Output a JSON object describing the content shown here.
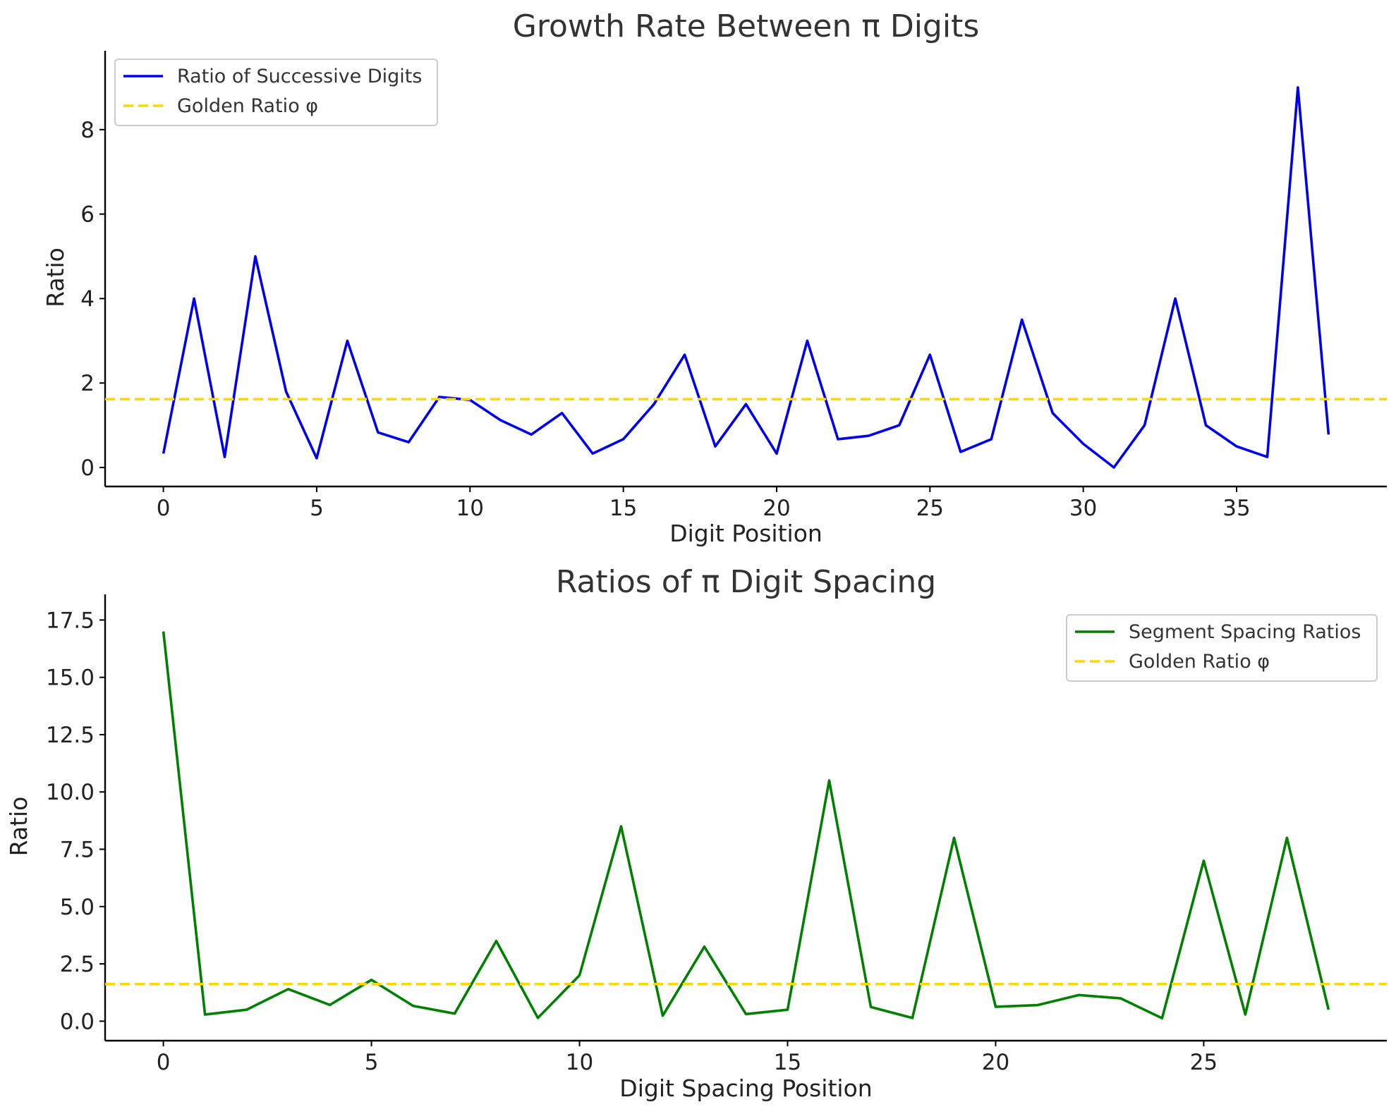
{
  "chart_data": [
    {
      "type": "line",
      "title": "Growth Rate Between π Digits",
      "xlabel": "Digit Position",
      "ylabel": "Ratio",
      "xlim": [
        -1.9,
        39.9
      ],
      "ylim": [
        -0.45,
        9.45
      ],
      "xticks": [
        0,
        5,
        10,
        15,
        20,
        25,
        30,
        35
      ],
      "xtick_labels": [
        "0",
        "5",
        "10",
        "15",
        "20",
        "25",
        "30",
        "35"
      ],
      "yticks": [
        0,
        2,
        4,
        6,
        8
      ],
      "ytick_labels": [
        "0",
        "2",
        "4",
        "6",
        "8"
      ],
      "grid": false,
      "legend_position": "top-left",
      "series": [
        {
          "name": "Ratio of Successive Digits",
          "color": "#0000ee",
          "style": "solid",
          "x": [
            0,
            1,
            2,
            3,
            4,
            5,
            6,
            7,
            8,
            9,
            10,
            11,
            12,
            13,
            14,
            15,
            16,
            17,
            18,
            19,
            20,
            21,
            22,
            23,
            24,
            25,
            26,
            27,
            28,
            29,
            30,
            31,
            32,
            33,
            34,
            35,
            36,
            37,
            38
          ],
          "values": [
            0.33,
            4,
            0.25,
            5,
            1.8,
            0.22,
            3,
            0.83,
            0.6,
            1.67,
            1.6,
            1.12,
            0.78,
            1.29,
            0.33,
            0.67,
            1.5,
            2.67,
            0.5,
            1.5,
            0.33,
            3,
            0.67,
            0.75,
            1,
            2.67,
            0.37,
            0.67,
            3.5,
            1.29,
            0.56,
            0,
            1,
            4,
            1,
            0.5,
            0.25,
            9,
            0.78
          ]
        },
        {
          "name": "Golden Ratio φ",
          "color": "#ffd700",
          "style": "dashed",
          "constant": 1.618
        }
      ]
    },
    {
      "type": "line",
      "title": "Ratios of π Digit Spacing",
      "xlabel": "Digit Spacing Position",
      "ylabel": "Ratio",
      "xlim": [
        -1.4,
        29.4
      ],
      "ylim": [
        -0.85,
        17.85
      ],
      "xticks": [
        0,
        5,
        10,
        15,
        20,
        25
      ],
      "xtick_labels": [
        "0",
        "5",
        "10",
        "15",
        "20",
        "25"
      ],
      "yticks": [
        0,
        2.5,
        5,
        7.5,
        10,
        12.5,
        15,
        17.5
      ],
      "ytick_labels": [
        "0.0",
        "2.5",
        "5.0",
        "7.5",
        "10.0",
        "12.5",
        "15.0",
        "17.5"
      ],
      "grid": false,
      "legend_position": "top-right",
      "series": [
        {
          "name": "Segment Spacing Ratios",
          "color": "#008000",
          "style": "solid",
          "x": [
            0,
            1,
            2,
            3,
            4,
            5,
            6,
            7,
            8,
            9,
            10,
            11,
            12,
            13,
            14,
            15,
            16,
            17,
            18,
            19,
            20,
            21,
            22,
            23,
            24,
            25,
            26,
            27,
            28
          ],
          "values": [
            17,
            0.29,
            0.5,
            1.4,
            0.71,
            1.8,
            0.67,
            0.33,
            3.5,
            0.14,
            2,
            8.5,
            0.24,
            3.25,
            0.31,
            0.5,
            10.5,
            0.62,
            0.14,
            8,
            0.63,
            0.7,
            1.14,
            1,
            0.13,
            7,
            0.29,
            8,
            0.5
          ]
        },
        {
          "name": "Golden Ratio φ",
          "color": "#ffd700",
          "style": "dashed",
          "constant": 1.618
        }
      ]
    }
  ]
}
